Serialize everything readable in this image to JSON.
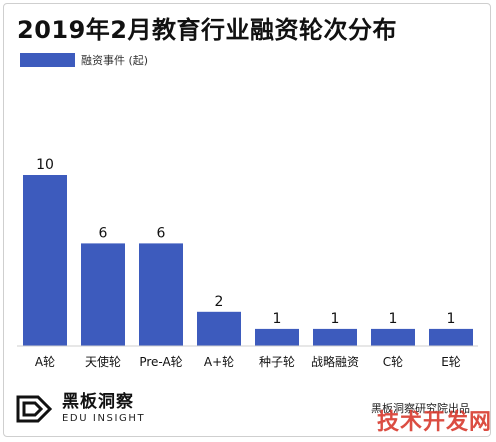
{
  "title": "2019年2月教育行业融资轮次分布",
  "legend": {
    "label": "融资事件 (起)"
  },
  "colors": {
    "bar": "#3d5bbd",
    "axis": "#cfcfcf",
    "watermark": "#d83a2e"
  },
  "chart_data": {
    "type": "bar",
    "title": "2019年2月教育行业融资轮次分布",
    "categories": [
      "A轮",
      "天使轮",
      "Pre-A轮",
      "A+轮",
      "种子轮",
      "战略融资",
      "C轮",
      "E轮"
    ],
    "series": [
      {
        "name": "融资事件 (起)",
        "values": [
          10,
          6,
          6,
          2,
          1,
          1,
          1,
          1
        ]
      }
    ],
    "ylim": [
      0,
      10
    ],
    "grid": false,
    "legend_position": "top-left"
  },
  "footer": {
    "brand_cn": "黑板洞察",
    "brand_en": "EDU INSIGHT",
    "source": "黑板洞察研究院出品",
    "logo_icon": "edu-insight-logo"
  },
  "watermark": "技术开发网"
}
